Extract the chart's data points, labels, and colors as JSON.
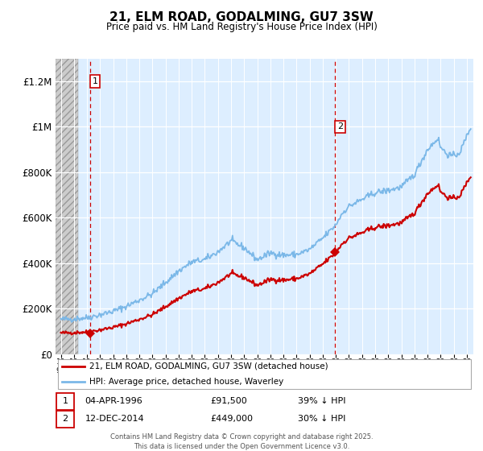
{
  "title": "21, ELM ROAD, GODALMING, GU7 3SW",
  "subtitle": "Price paid vs. HM Land Registry's House Price Index (HPI)",
  "hpi_label": "HPI: Average price, detached house, Waverley",
  "price_label": "21, ELM ROAD, GODALMING, GU7 3SW (detached house)",
  "annotation1": {
    "label": "1",
    "date_str": "04-APR-1996",
    "price": 91500,
    "pct": "39% ↓ HPI"
  },
  "annotation2": {
    "label": "2",
    "date_str": "12-DEC-2014",
    "price": 449000,
    "pct": "30% ↓ HPI"
  },
  "footer": "Contains HM Land Registry data © Crown copyright and database right 2025.\nThis data is licensed under the Open Government Licence v3.0.",
  "ylim": [
    0,
    1300000
  ],
  "xlim_start": 1993.6,
  "xlim_end": 2025.5,
  "sale1_x": 1996.26,
  "sale1_y": 91500,
  "sale2_x": 2014.95,
  "sale2_y": 449000,
  "hpi_color": "#7bb8e8",
  "price_color": "#cc0000",
  "bg_plot": "#ddeeff",
  "grid_color": "#ffffff",
  "hatch_end": 1995.3
}
